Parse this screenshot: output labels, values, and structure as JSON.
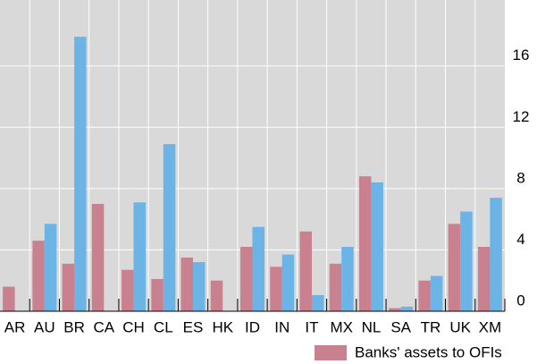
{
  "chart_data": {
    "type": "bar",
    "categories": [
      "AR",
      "AU",
      "BR",
      "CA",
      "CH",
      "CL",
      "ES",
      "HK",
      "ID",
      "IN",
      "IT",
      "MX",
      "NL",
      "SA",
      "TR",
      "UK",
      "XM"
    ],
    "series": [
      {
        "name": "Banks' assets to OFIs",
        "color": "#c98190",
        "values": [
          1.6,
          4.6,
          3.1,
          7.0,
          2.7,
          2.1,
          3.5,
          2.0,
          4.2,
          2.9,
          5.2,
          3.1,
          8.8,
          0.2,
          2.0,
          5.7,
          4.2
        ]
      },
      {
        "color": "#6cb3e6",
        "values": [
          null,
          5.7,
          17.9,
          null,
          7.1,
          10.9,
          3.2,
          null,
          5.5,
          3.7,
          1.05,
          4.2,
          8.4,
          0.3,
          2.3,
          6.5,
          7.4
        ]
      }
    ],
    "ylim": [
      0,
      20.3
    ],
    "yticks": [
      0,
      4,
      8,
      12,
      16
    ],
    "grid": true
  }
}
